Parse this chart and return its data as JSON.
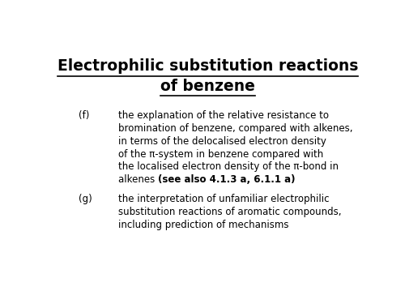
{
  "title_line1": "Electrophilic substitution reactions",
  "title_line2": "of benzene",
  "background_color": "#ffffff",
  "title_fontsize": 13.5,
  "title_fontweight": "bold",
  "body_fontsize": 8.5,
  "label_f": "(f)",
  "text_f_lines": [
    "the explanation of the relative resistance to",
    "bromination of benzene, compared with alkenes,",
    "in terms of the delocalised electron density",
    "of the π-system in benzene compared with",
    "the localised electron density of the π-bond in"
  ],
  "text_f_last_normal": "alkenes ",
  "text_f_bold": "(see also 4.1.3 a, 6.1.1 a)",
  "label_g": "(g)",
  "text_g_lines": [
    "the interpretation of unfamiliar electrophilic",
    "substitution reactions of aromatic compounds,",
    "including prediction of mechanisms"
  ]
}
